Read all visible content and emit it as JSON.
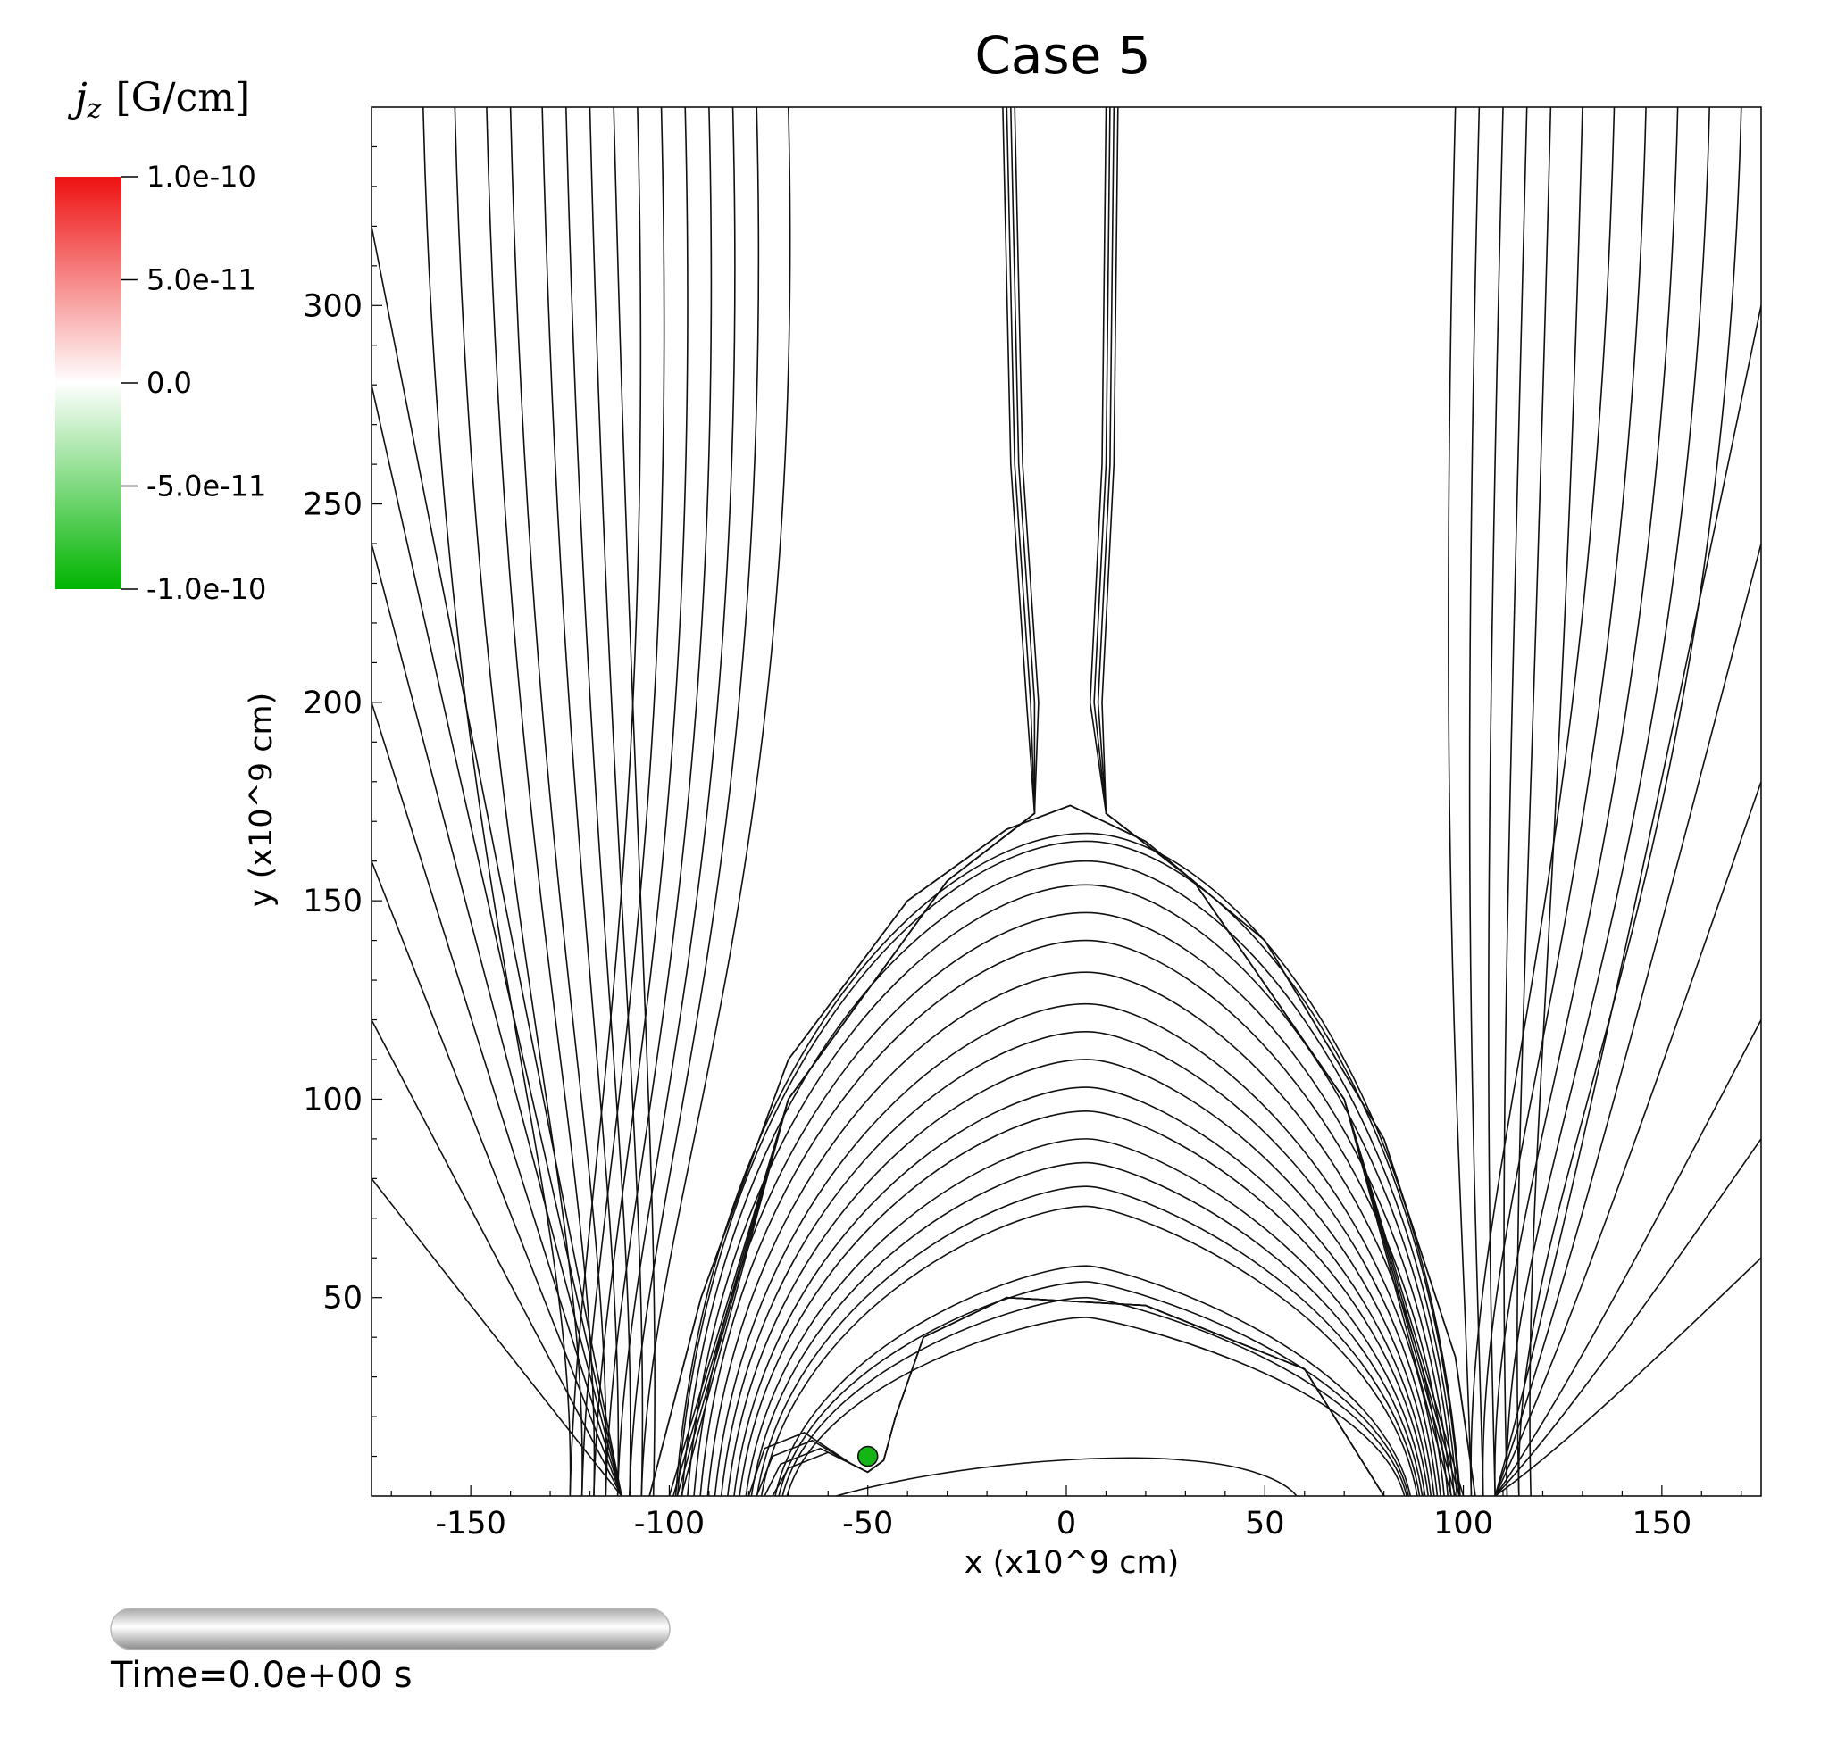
{
  "chart_data": {
    "type": "streamline",
    "title": "Case 5",
    "xlabel": "x (x10^9 cm)",
    "ylabel": "y (x10^9 cm)",
    "xlim": [
      -175,
      175
    ],
    "ylim": [
      0,
      350
    ],
    "xticks": [
      -150,
      -100,
      -50,
      0,
      50,
      100,
      150
    ],
    "yticks": [
      50,
      100,
      150,
      200,
      250,
      300
    ],
    "x_tick_labels": [
      "-150",
      "-100",
      "-50",
      "0",
      "50",
      "100",
      "150"
    ],
    "y_tick_labels": [
      "50",
      "100",
      "150",
      "200",
      "250",
      "300"
    ],
    "colorbar": {
      "title": "j_z [G/cm]",
      "title_var": "j",
      "title_sub": "z",
      "title_units": "[G/cm]",
      "range": [
        -1e-10,
        1e-10
      ],
      "tick_labels": [
        "1.0e-10",
        "5.0e-11",
        "0.0",
        "-5.0e-11",
        "-1.0e-10"
      ],
      "color_max": "#ee1111",
      "color_mid": "#ffffff",
      "color_min": "#00b400"
    },
    "marker": {
      "x": -50,
      "y": 10,
      "color": "#16b516"
    },
    "x_point_y": 174,
    "loop_apex_heights": [
      167,
      165,
      160,
      154,
      147,
      140,
      132,
      124,
      117,
      110,
      103,
      97,
      90,
      84,
      78,
      73,
      58,
      54,
      50,
      45
    ],
    "low_arcade_apex_height": 10,
    "left_footpoints_x": [
      -125,
      -122,
      -119,
      -116,
      -113,
      -110,
      -107,
      -104
    ],
    "right_footpoints_x": [
      102,
      105,
      108,
      111,
      114,
      117
    ],
    "grid": false
  },
  "annotations": {
    "time_text": "Time=0.0e+00 s"
  }
}
